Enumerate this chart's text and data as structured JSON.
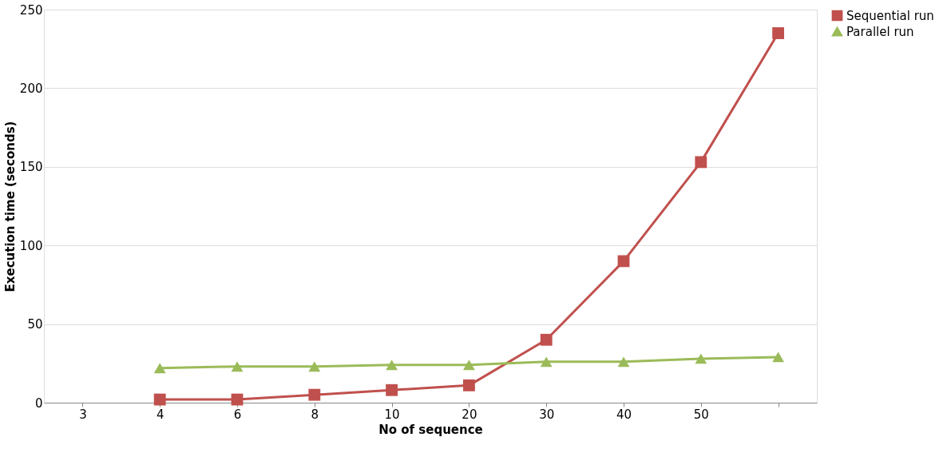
{
  "chart_data": {
    "type": "line",
    "xlabel": "No of sequence",
    "ylabel": "Execution time (seconds)",
    "categories": [
      "3",
      "4",
      "6",
      "8",
      "10",
      "20",
      "30",
      "40",
      "50",
      null
    ],
    "series": [
      {
        "name": "Sequential run",
        "color": "#c0504d",
        "marker": "square",
        "values": [
          null,
          2,
          2,
          5,
          8,
          11,
          40,
          90,
          153,
          235
        ]
      },
      {
        "name": "Parallel run",
        "color": "#9bbb59",
        "marker": "triangle",
        "values": [
          null,
          22,
          23,
          23,
          24,
          24,
          26,
          26,
          28,
          29
        ]
      }
    ],
    "ylim": [
      0,
      250
    ],
    "yticks": [
      0,
      50,
      100,
      150,
      200,
      250
    ],
    "grid": "y",
    "legend": "right",
    "line_style": "solid"
  }
}
